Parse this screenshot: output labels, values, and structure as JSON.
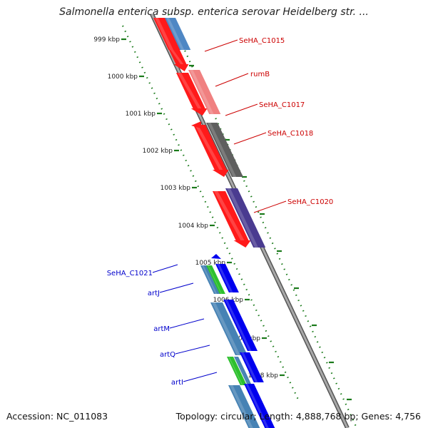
{
  "title": "Salmonella enterica subsp. enterica serovar Heidelberg str. ...",
  "footer": {
    "accession": "Accession: NC_011083",
    "stats": "Topology: circular; Length: 4,888,768 bp; Genes: 4,756"
  },
  "ticks": [
    "999 kbp",
    "1000 kbp",
    "1001 kbp",
    "1002 kbp",
    "1003 kbp",
    "1004 kbp",
    "1005 kbp",
    "1006 kbp",
    "1007 kbp",
    "1008 kbp"
  ],
  "colors": {
    "forward_label": "#cc0000",
    "reverse_label": "#0000cc",
    "backbone": "#888888",
    "ruler": "#1a7a1a"
  },
  "forward_labels": [
    "SeHA_C1015",
    "rumB",
    "SeHA_C1017",
    "SeHA_C1018",
    "SeHA_C1020"
  ],
  "reverse_labels": [
    "SeHA_C1021",
    "artJ",
    "artM",
    "artQ",
    "artI"
  ]
}
